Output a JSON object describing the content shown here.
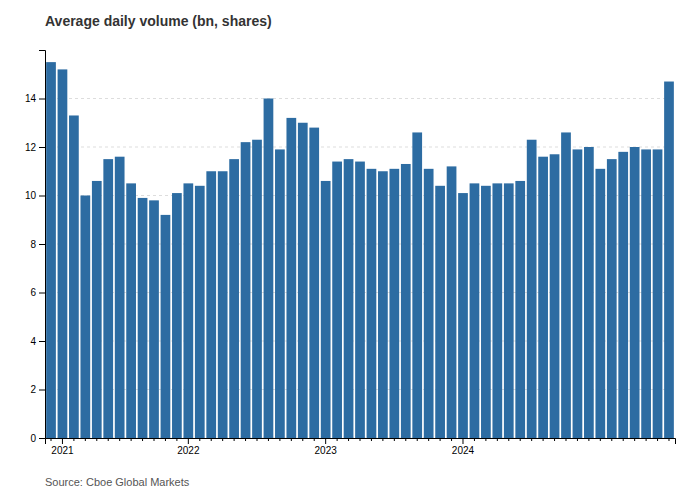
{
  "chart_data": {
    "type": "bar",
    "title": "Average daily volume (bn, shares)",
    "source": "Source: Cboe Global Markets",
    "categories": [
      null,
      "2021",
      null,
      null,
      null,
      null,
      null,
      null,
      null,
      null,
      null,
      null,
      "2022",
      null,
      null,
      null,
      null,
      null,
      null,
      null,
      null,
      null,
      null,
      null,
      "2023",
      null,
      null,
      null,
      null,
      null,
      null,
      null,
      null,
      null,
      null,
      null,
      "2024",
      null,
      null,
      null,
      null,
      null,
      null,
      null,
      null,
      null,
      null,
      null,
      null,
      null,
      null,
      null,
      null,
      null,
      null
    ],
    "values": [
      15.5,
      15.2,
      13.3,
      10.0,
      10.6,
      11.5,
      11.6,
      10.5,
      9.9,
      9.8,
      9.2,
      10.1,
      10.5,
      10.4,
      11.0,
      11.0,
      11.5,
      12.2,
      12.3,
      14.0,
      11.9,
      13.2,
      13.0,
      12.8,
      10.6,
      11.4,
      11.5,
      11.4,
      11.1,
      11.0,
      11.1,
      11.3,
      12.6,
      11.1,
      10.4,
      11.2,
      10.1,
      10.5,
      10.4,
      10.5,
      10.5,
      10.6,
      12.3,
      11.6,
      11.7,
      12.6,
      11.9,
      12.0,
      11.1,
      11.5,
      11.8,
      12.0,
      11.9,
      11.9,
      14.7
    ],
    "color": "#2d6ca2",
    "ylim": [
      0,
      16
    ],
    "yticks": [
      0,
      2,
      4,
      6,
      8,
      10,
      12,
      14
    ],
    "grid": true
  }
}
